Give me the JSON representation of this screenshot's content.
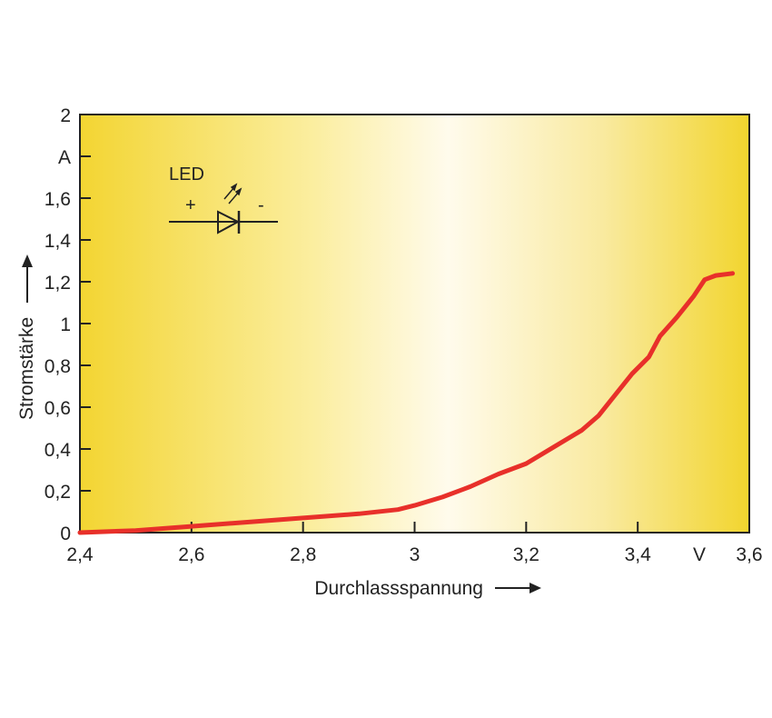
{
  "chart_data": {
    "type": "line",
    "title": "",
    "xlabel": "Durchlassspannung",
    "ylabel": "Stromstärke",
    "x_unit": "V",
    "y_unit": "A",
    "xlim": [
      2.4,
      3.6
    ],
    "ylim": [
      0,
      2
    ],
    "x_ticks": [
      "2,4",
      "2,6",
      "2,8",
      "3",
      "3,2",
      "3,4",
      "3,6"
    ],
    "x_tick_values": [
      2.4,
      2.6,
      2.8,
      3.0,
      3.2,
      3.4,
      3.6
    ],
    "y_ticks": [
      "0",
      "0,2",
      "0,4",
      "0,6",
      "0,8",
      "1",
      "1,2",
      "1,4",
      "1,6",
      "2"
    ],
    "y_tick_values": [
      0,
      0.2,
      0.4,
      0.6,
      0.8,
      1.0,
      1.2,
      1.4,
      1.6,
      2.0
    ],
    "grid": false,
    "series": [
      {
        "name": "",
        "color": "#e8302a",
        "x": [
          2.4,
          2.5,
          2.6,
          2.7,
          2.8,
          2.9,
          2.97,
          3.0,
          3.05,
          3.1,
          3.15,
          3.2,
          3.25,
          3.3,
          3.33,
          3.36,
          3.39,
          3.42,
          3.44,
          3.47,
          3.5,
          3.52,
          3.54,
          3.57
        ],
        "y": [
          0.0,
          0.01,
          0.03,
          0.05,
          0.07,
          0.09,
          0.11,
          0.13,
          0.17,
          0.22,
          0.28,
          0.33,
          0.41,
          0.49,
          0.56,
          0.66,
          0.76,
          0.84,
          0.94,
          1.03,
          1.13,
          1.21,
          1.23,
          1.24
        ]
      }
    ],
    "background": {
      "gradient_colors": [
        "#f2d530",
        "#fef6cc",
        "#fffbea",
        "#fef6cc",
        "#f2d530"
      ]
    }
  },
  "legend": {
    "led_label": "LED",
    "plus": "+",
    "minus": "-"
  }
}
